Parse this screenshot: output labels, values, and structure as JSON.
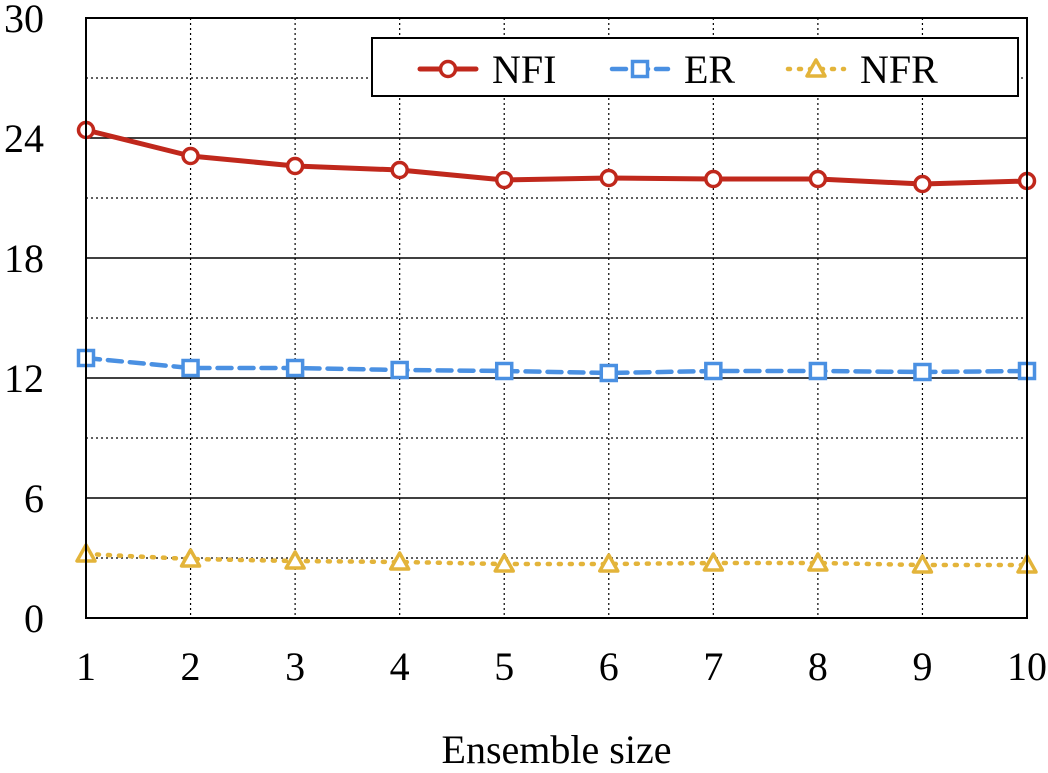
{
  "chart_data": {
    "type": "line",
    "title": "",
    "xlabel": "Ensemble size",
    "ylabel": "",
    "x": [
      1,
      2,
      3,
      4,
      5,
      6,
      7,
      8,
      9,
      10
    ],
    "xtick_labels": [
      "1",
      "2",
      "3",
      "4",
      "5",
      "6",
      "7",
      "8",
      "9",
      "10"
    ],
    "ylim": [
      0,
      30
    ],
    "yticks": [
      0,
      6,
      12,
      18,
      24,
      30
    ],
    "ytick_labels": [
      "0",
      "6",
      "12",
      "18",
      "24",
      "30"
    ],
    "minor_yticks": [
      3,
      9,
      15,
      21,
      27
    ],
    "grid": true,
    "legend_position": "top-right",
    "series": [
      {
        "name": "NFI",
        "color": "#c0281c",
        "marker": "circle",
        "line_style": "solid",
        "values": [
          24.4,
          23.1,
          22.6,
          22.4,
          21.9,
          22.0,
          21.95,
          21.95,
          21.7,
          21.85
        ]
      },
      {
        "name": "ER",
        "color": "#4a90e2",
        "marker": "square",
        "line_style": "dashed",
        "values": [
          13.0,
          12.5,
          12.5,
          12.4,
          12.35,
          12.25,
          12.35,
          12.35,
          12.3,
          12.35
        ]
      },
      {
        "name": "NFR",
        "color": "#e3b43a",
        "marker": "triangle",
        "line_style": "dotted",
        "values": [
          3.2,
          2.95,
          2.85,
          2.8,
          2.7,
          2.7,
          2.75,
          2.75,
          2.65,
          2.65
        ]
      }
    ]
  }
}
